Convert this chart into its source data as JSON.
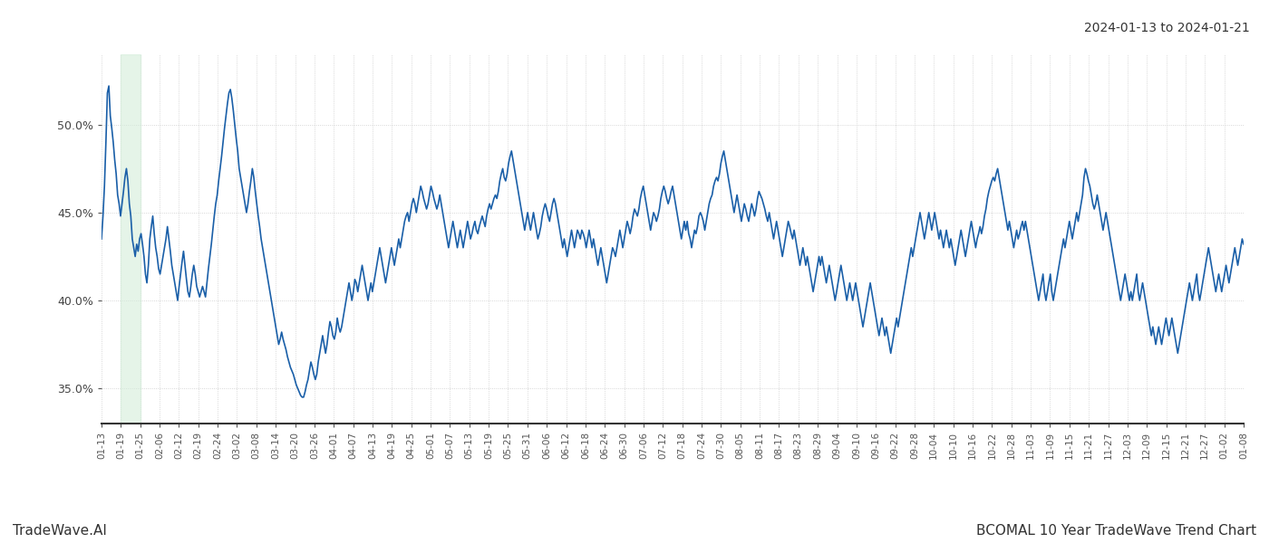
{
  "title_right": "2024-01-13 to 2024-01-21",
  "footer_left": "TradeWave.AI",
  "footer_right": "BCOMAL 10 Year TradeWave Trend Chart",
  "line_color": "#1a5fa8",
  "line_width": 1.2,
  "highlight_color": "#d4edda",
  "highlight_alpha": 0.6,
  "background_color": "#ffffff",
  "grid_color": "#cccccc",
  "ylim": [
    33.0,
    54.0
  ],
  "yticks": [
    35.0,
    40.0,
    45.0,
    50.0
  ],
  "x_labels": [
    "01-13",
    "01-19",
    "01-25",
    "02-06",
    "02-12",
    "02-19",
    "02-24",
    "03-02",
    "03-08",
    "03-14",
    "03-20",
    "03-26",
    "04-01",
    "04-07",
    "04-13",
    "04-19",
    "04-25",
    "05-01",
    "05-07",
    "05-13",
    "05-19",
    "05-25",
    "05-31",
    "06-06",
    "06-12",
    "06-18",
    "06-24",
    "06-30",
    "07-06",
    "07-12",
    "07-18",
    "07-24",
    "07-30",
    "08-05",
    "08-11",
    "08-17",
    "08-23",
    "08-29",
    "09-04",
    "09-10",
    "09-16",
    "09-22",
    "09-28",
    "10-04",
    "10-10",
    "10-16",
    "10-22",
    "10-28",
    "11-03",
    "11-09",
    "11-15",
    "11-21",
    "11-27",
    "12-03",
    "12-09",
    "12-15",
    "12-21",
    "12-27",
    "01-02",
    "01-08"
  ],
  "y_values": [
    43.5,
    44.8,
    46.5,
    49.0,
    51.8,
    52.2,
    50.5,
    49.8,
    49.0,
    48.0,
    47.2,
    46.0,
    45.5,
    44.8,
    45.5,
    46.2,
    47.0,
    47.5,
    46.8,
    45.5,
    44.8,
    43.5,
    43.0,
    42.5,
    43.2,
    42.8,
    43.5,
    43.8,
    43.2,
    42.5,
    41.5,
    41.0,
    42.0,
    43.5,
    44.2,
    44.8,
    43.8,
    43.0,
    42.5,
    41.8,
    41.5,
    42.0,
    42.5,
    43.0,
    43.5,
    44.2,
    43.5,
    42.8,
    42.0,
    41.5,
    41.0,
    40.5,
    40.0,
    40.8,
    41.5,
    42.2,
    42.8,
    42.0,
    41.2,
    40.5,
    40.2,
    40.8,
    41.5,
    42.0,
    41.5,
    40.8,
    40.5,
    40.2,
    40.5,
    40.8,
    40.5,
    40.2,
    41.0,
    41.8,
    42.5,
    43.2,
    44.0,
    44.8,
    45.5,
    46.0,
    46.8,
    47.5,
    48.2,
    49.0,
    49.8,
    50.5,
    51.2,
    51.8,
    52.0,
    51.5,
    50.8,
    50.0,
    49.2,
    48.5,
    47.5,
    47.0,
    46.5,
    46.0,
    45.5,
    45.0,
    45.5,
    46.2,
    46.8,
    47.5,
    47.0,
    46.2,
    45.5,
    44.8,
    44.2,
    43.5,
    43.0,
    42.5,
    42.0,
    41.5,
    41.0,
    40.5,
    40.0,
    39.5,
    39.0,
    38.5,
    38.0,
    37.5,
    37.8,
    38.2,
    37.8,
    37.5,
    37.2,
    36.8,
    36.5,
    36.2,
    36.0,
    35.8,
    35.5,
    35.2,
    35.0,
    34.8,
    34.6,
    34.5,
    34.5,
    34.8,
    35.2,
    35.5,
    36.0,
    36.5,
    36.2,
    35.8,
    35.5,
    35.8,
    36.5,
    37.0,
    37.5,
    38.0,
    37.5,
    37.0,
    37.5,
    38.2,
    38.8,
    38.5,
    38.0,
    37.8,
    38.2,
    39.0,
    38.5,
    38.2,
    38.5,
    39.0,
    39.5,
    40.0,
    40.5,
    41.0,
    40.5,
    40.0,
    40.5,
    41.2,
    41.0,
    40.5,
    41.0,
    41.5,
    42.0,
    41.5,
    41.0,
    40.5,
    40.0,
    40.5,
    41.0,
    40.5,
    41.0,
    41.5,
    42.0,
    42.5,
    43.0,
    42.5,
    42.0,
    41.5,
    41.0,
    41.5,
    42.0,
    42.5,
    43.0,
    42.5,
    42.0,
    42.5,
    43.0,
    43.5,
    43.0,
    43.5,
    44.0,
    44.5,
    44.8,
    45.0,
    44.5,
    45.0,
    45.5,
    45.8,
    45.5,
    45.0,
    45.5,
    46.0,
    46.5,
    46.2,
    45.8,
    45.5,
    45.2,
    45.5,
    46.0,
    46.5,
    46.2,
    45.8,
    45.5,
    45.2,
    45.5,
    46.0,
    45.5,
    45.0,
    44.5,
    44.0,
    43.5,
    43.0,
    43.5,
    44.0,
    44.5,
    44.0,
    43.5,
    43.0,
    43.5,
    44.0,
    43.5,
    43.0,
    43.5,
    44.0,
    44.5,
    44.0,
    43.5,
    43.8,
    44.2,
    44.5,
    44.0,
    43.8,
    44.2,
    44.5,
    44.8,
    44.5,
    44.2,
    44.8,
    45.2,
    45.5,
    45.2,
    45.5,
    45.8,
    46.0,
    45.8,
    46.2,
    46.8,
    47.2,
    47.5,
    47.0,
    46.8,
    47.2,
    47.8,
    48.2,
    48.5,
    48.0,
    47.5,
    47.0,
    46.5,
    46.0,
    45.5,
    45.0,
    44.5,
    44.0,
    44.5,
    45.0,
    44.5,
    44.0,
    44.5,
    45.0,
    44.5,
    44.0,
    43.5,
    43.8,
    44.2,
    44.8,
    45.2,
    45.5,
    45.2,
    44.8,
    44.5,
    45.0,
    45.5,
    45.8,
    45.5,
    45.0,
    44.5,
    44.0,
    43.5,
    43.0,
    43.5,
    43.0,
    42.5,
    43.0,
    43.5,
    44.0,
    43.5,
    43.0,
    43.5,
    44.0,
    43.8,
    43.5,
    44.0,
    43.8,
    43.5,
    43.0,
    43.5,
    44.0,
    43.5,
    43.0,
    43.5,
    43.0,
    42.5,
    42.0,
    42.5,
    43.0,
    42.5,
    42.0,
    41.5,
    41.0,
    41.5,
    42.0,
    42.5,
    43.0,
    42.8,
    42.5,
    43.0,
    43.5,
    44.0,
    43.5,
    43.0,
    43.5,
    44.0,
    44.5,
    44.2,
    43.8,
    44.2,
    44.8,
    45.2,
    45.0,
    44.8,
    45.2,
    45.8,
    46.2,
    46.5,
    46.0,
    45.5,
    45.0,
    44.5,
    44.0,
    44.5,
    45.0,
    44.8,
    44.5,
    44.8,
    45.2,
    45.8,
    46.2,
    46.5,
    46.2,
    45.8,
    45.5,
    45.8,
    46.2,
    46.5,
    46.0,
    45.5,
    45.0,
    44.5,
    44.0,
    43.5,
    44.0,
    44.5,
    44.0,
    44.5,
    43.8,
    43.5,
    43.0,
    43.5,
    44.0,
    43.8,
    44.2,
    44.8,
    45.0,
    44.8,
    44.5,
    44.0,
    44.5,
    45.0,
    45.5,
    45.8,
    46.0,
    46.5,
    46.8,
    47.0,
    46.8,
    47.2,
    47.8,
    48.2,
    48.5,
    48.0,
    47.5,
    47.0,
    46.5,
    46.0,
    45.5,
    45.0,
    45.5,
    46.0,
    45.5,
    45.0,
    44.5,
    45.0,
    45.5,
    45.2,
    44.8,
    44.5,
    45.0,
    45.5,
    45.2,
    44.8,
    45.2,
    45.8,
    46.2,
    46.0,
    45.8,
    45.5,
    45.2,
    44.8,
    44.5,
    45.0,
    44.5,
    44.0,
    43.5,
    44.0,
    44.5,
    44.0,
    43.5,
    43.0,
    42.5,
    43.0,
    43.5,
    44.0,
    44.5,
    44.2,
    43.8,
    43.5,
    44.0,
    43.5,
    43.0,
    42.5,
    42.0,
    42.5,
    43.0,
    42.5,
    42.0,
    42.5,
    42.0,
    41.5,
    41.0,
    40.5,
    41.0,
    41.5,
    42.0,
    42.5,
    42.0,
    42.5,
    42.0,
    41.5,
    41.0,
    41.5,
    42.0,
    41.5,
    41.0,
    40.5,
    40.0,
    40.5,
    41.0,
    41.5,
    42.0,
    41.5,
    41.0,
    40.5,
    40.0,
    40.5,
    41.0,
    40.5,
    40.0,
    40.5,
    41.0,
    40.5,
    40.0,
    39.5,
    39.0,
    38.5,
    39.0,
    39.5,
    40.0,
    40.5,
    41.0,
    40.5,
    40.0,
    39.5,
    39.0,
    38.5,
    38.0,
    38.5,
    39.0,
    38.5,
    38.0,
    38.5,
    38.0,
    37.5,
    37.0,
    37.5,
    38.0,
    38.5,
    39.0,
    38.5,
    39.0,
    39.5,
    40.0,
    40.5,
    41.0,
    41.5,
    42.0,
    42.5,
    43.0,
    42.5,
    43.0,
    43.5,
    44.0,
    44.5,
    45.0,
    44.5,
    44.0,
    43.5,
    44.0,
    44.5,
    45.0,
    44.5,
    44.0,
    44.5,
    45.0,
    44.5,
    44.0,
    43.5,
    44.0,
    43.5,
    43.0,
    43.5,
    44.0,
    43.5,
    43.0,
    43.5,
    43.0,
    42.5,
    42.0,
    42.5,
    43.0,
    43.5,
    44.0,
    43.5,
    43.0,
    42.5,
    43.0,
    43.5,
    44.0,
    44.5,
    44.0,
    43.5,
    43.0,
    43.5,
    43.8,
    44.2,
    43.8,
    44.2,
    44.8,
    45.2,
    45.8,
    46.2,
    46.5,
    46.8,
    47.0,
    46.8,
    47.2,
    47.5,
    47.0,
    46.5,
    46.0,
    45.5,
    45.0,
    44.5,
    44.0,
    44.5,
    44.0,
    43.5,
    43.0,
    43.5,
    44.0,
    43.5,
    43.8,
    44.2,
    44.5,
    44.0,
    44.5,
    44.0,
    43.5,
    43.0,
    42.5,
    42.0,
    41.5,
    41.0,
    40.5,
    40.0,
    40.5,
    41.0,
    41.5,
    40.5,
    40.0,
    40.5,
    41.0,
    41.5,
    40.5,
    40.0,
    40.5,
    41.0,
    41.5,
    42.0,
    42.5,
    43.0,
    43.5,
    43.0,
    43.5,
    44.0,
    44.5,
    44.0,
    43.5,
    44.0,
    44.5,
    45.0,
    44.5,
    45.0,
    45.5,
    46.0,
    47.0,
    47.5,
    47.2,
    46.8,
    46.5,
    46.0,
    45.5,
    45.2,
    45.5,
    46.0,
    45.5,
    45.0,
    44.5,
    44.0,
    44.5,
    45.0,
    44.5,
    44.0,
    43.5,
    43.0,
    42.5,
    42.0,
    41.5,
    41.0,
    40.5,
    40.0,
    40.5,
    41.0,
    41.5,
    41.0,
    40.5,
    40.0,
    40.5,
    40.0,
    40.5,
    41.0,
    41.5,
    40.5,
    40.0,
    40.5,
    41.0,
    40.5,
    40.0,
    39.5,
    39.0,
    38.5,
    38.0,
    38.5,
    38.0,
    37.5,
    38.0,
    38.5,
    38.0,
    37.5,
    38.0,
    38.5,
    39.0,
    38.5,
    38.0,
    38.5,
    39.0,
    38.5,
    38.0,
    37.5,
    37.0,
    37.5,
    38.0,
    38.5,
    39.0,
    39.5,
    40.0,
    40.5,
    41.0,
    40.5,
    40.0,
    40.5,
    41.0,
    41.5,
    40.5,
    40.0,
    40.5,
    41.0,
    41.5,
    42.0,
    42.5,
    43.0,
    42.5,
    42.0,
    41.5,
    41.0,
    40.5,
    41.0,
    41.5,
    41.0,
    40.5,
    41.0,
    41.5,
    42.0,
    41.5,
    41.0,
    41.5,
    42.0,
    42.5,
    43.0,
    42.5,
    42.0,
    42.5,
    43.0,
    43.5,
    43.2
  ]
}
